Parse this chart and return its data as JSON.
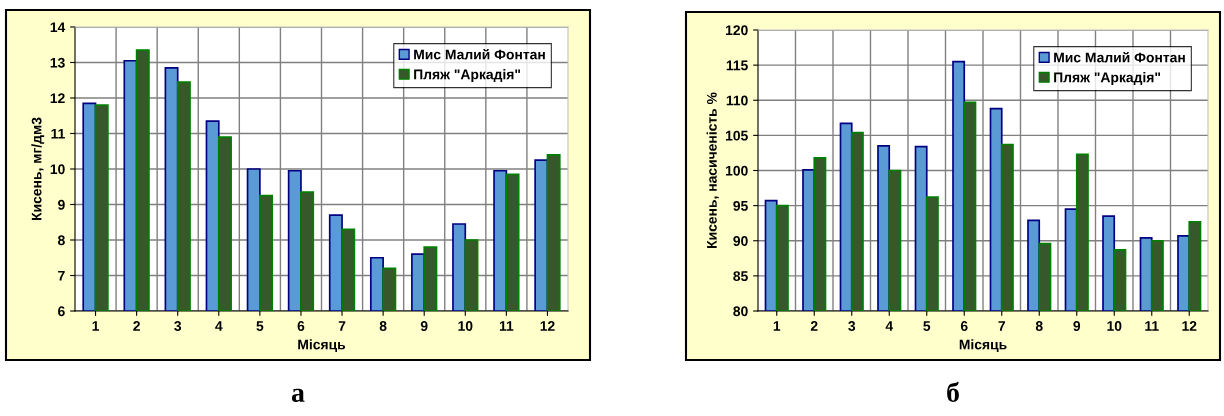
{
  "chart_data": [
    {
      "type": "bar",
      "xlabel": "Місяць",
      "ylabel": "Кисень, мг/дм3",
      "categories": [
        "1",
        "2",
        "3",
        "4",
        "5",
        "6",
        "7",
        "8",
        "9",
        "10",
        "11",
        "12"
      ],
      "series": [
        {
          "name": "Мис Малий Фонтан",
          "color": "#5b9bd5",
          "values": [
            11.85,
            13.05,
            12.85,
            11.35,
            10.0,
            9.95,
            8.7,
            7.5,
            7.6,
            8.45,
            9.95,
            10.25
          ]
        },
        {
          "name": "Пляж \"Аркадія\"",
          "color": "#37582a",
          "values": [
            11.8,
            13.35,
            12.45,
            10.9,
            9.25,
            9.35,
            8.3,
            7.2,
            7.8,
            8.0,
            9.85,
            10.4
          ]
        }
      ],
      "ylim": [
        6,
        14
      ],
      "yticks": [
        6,
        7,
        8,
        9,
        10,
        11,
        12,
        13,
        14
      ],
      "grid": true,
      "legend": "top right",
      "annotations": [
        "а"
      ]
    },
    {
      "type": "bar",
      "xlabel": "Місяць",
      "ylabel": "Кисень, насиченість %",
      "categories": [
        "1",
        "2",
        "3",
        "4",
        "5",
        "6",
        "7",
        "8",
        "9",
        "10",
        "11",
        "12"
      ],
      "series": [
        {
          "name": "Мис Малий Фонтан",
          "color": "#5b9bd5",
          "values": [
            95.7,
            100.1,
            106.7,
            103.5,
            103.4,
            115.5,
            108.8,
            92.9,
            94.5,
            93.5,
            90.4,
            90.7
          ]
        },
        {
          "name": "Пляж \"Аркадія\"",
          "color": "#37582a",
          "values": [
            95.0,
            101.8,
            105.4,
            100.0,
            96.2,
            109.7,
            103.7,
            89.6,
            102.3,
            88.7,
            90.0,
            92.7
          ]
        }
      ],
      "ylim": [
        80,
        120
      ],
      "yticks": [
        80,
        85,
        90,
        95,
        100,
        105,
        110,
        115,
        120
      ],
      "grid": true,
      "legend": "top right",
      "annotations": [
        "б"
      ]
    }
  ]
}
